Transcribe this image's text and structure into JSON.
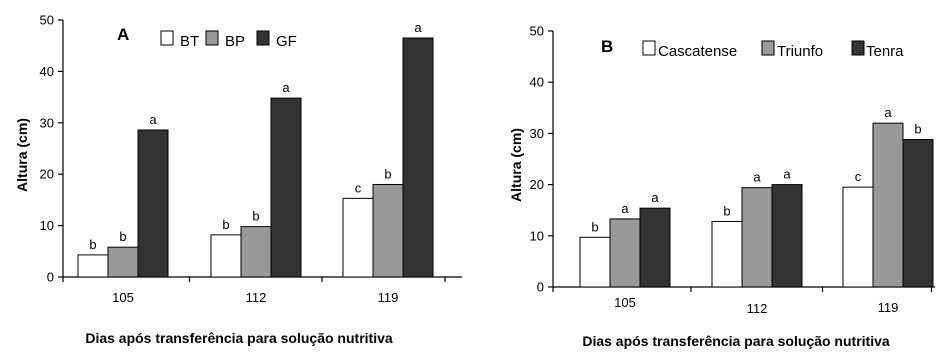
{
  "chart_data": [
    {
      "type": "bar",
      "panel": "A",
      "categories": [
        "105",
        "112",
        "119"
      ],
      "series": [
        {
          "name": "BT",
          "values": [
            4.3,
            8.2,
            15.3
          ],
          "color": "#ffffff",
          "labels": [
            "b",
            "b",
            "c"
          ]
        },
        {
          "name": "BP",
          "values": [
            5.8,
            9.8,
            18.0
          ],
          "color": "#999999",
          "labels": [
            "b",
            "b",
            "b"
          ]
        },
        {
          "name": "GF",
          "values": [
            28.6,
            34.8,
            46.5
          ],
          "color": "#333333",
          "labels": [
            "a",
            "a",
            "a"
          ]
        }
      ],
      "ylabel": "Altura (cm)",
      "xlabel": "Dias após transferência para solução nutritiva",
      "ylim": [
        0,
        50
      ],
      "yticks": [
        "0",
        "10",
        "20",
        "30",
        "40",
        "50"
      ],
      "grid": false,
      "legend_position": "top"
    },
    {
      "type": "bar",
      "panel": "B",
      "categories": [
        "105",
        "112",
        "119"
      ],
      "series": [
        {
          "name": "Cascatense",
          "values": [
            9.7,
            12.8,
            19.5
          ],
          "color": "#ffffff",
          "labels": [
            "b",
            "b",
            "c"
          ]
        },
        {
          "name": "Triunfo",
          "values": [
            13.3,
            19.4,
            32.0
          ],
          "color": "#999999",
          "labels": [
            "a",
            "a",
            "a"
          ]
        },
        {
          "name": "Tenra",
          "values": [
            15.4,
            20.0,
            28.8
          ],
          "color": "#333333",
          "labels": [
            "a",
            "a",
            "b"
          ]
        }
      ],
      "ylabel": "Altura (cm)",
      "xlabel": "Dias após transferência para solução nutritiva",
      "ylim": [
        0,
        50
      ],
      "yticks": [
        "0",
        "10",
        "20",
        "30",
        "40",
        "50"
      ],
      "grid": false,
      "legend_position": "top"
    }
  ]
}
